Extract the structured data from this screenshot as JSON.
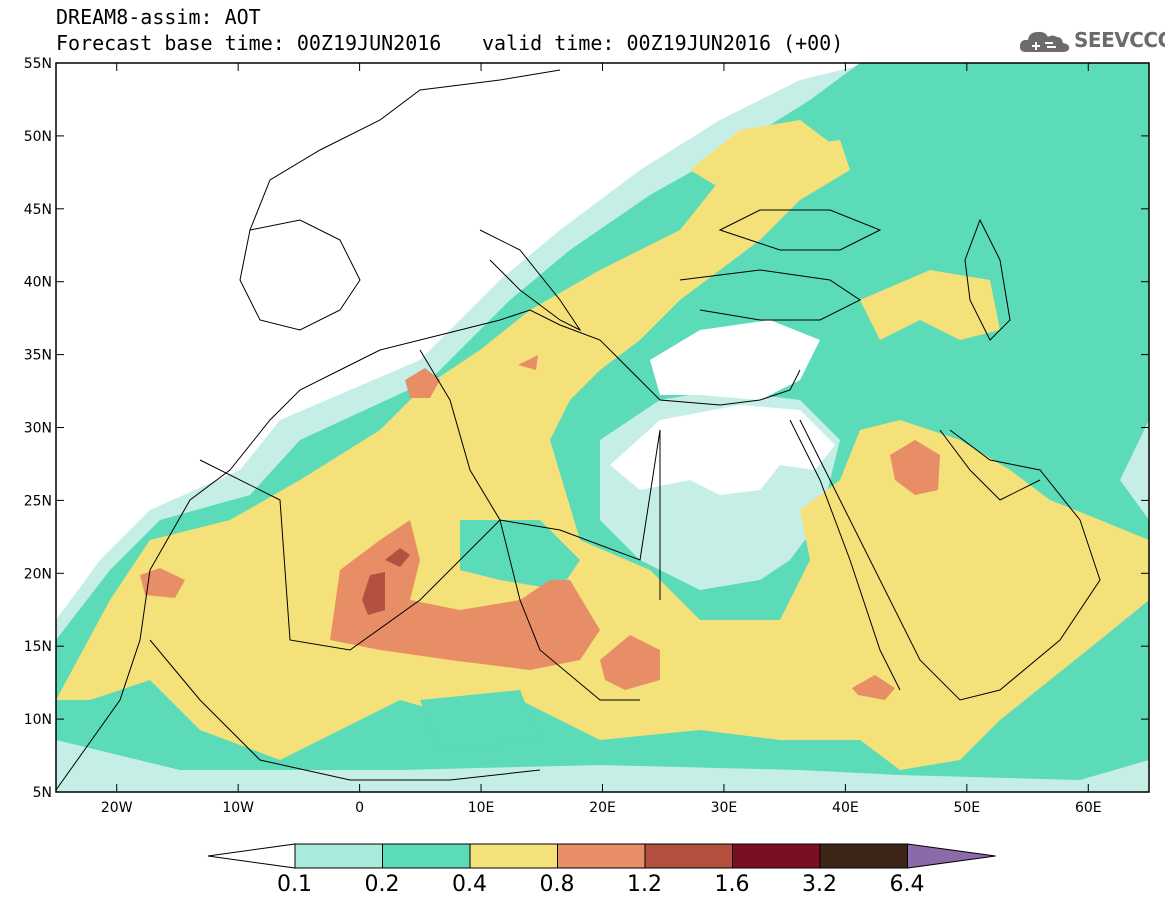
{
  "header": {
    "title": "DREAM8-assim: AOT",
    "base_time": "Forecast base time: 00Z19JUN2016",
    "valid_time": "valid time: 00Z19JUN2016 (+00)",
    "logo_text": "SEEVCCC"
  },
  "map": {
    "lon_range": [
      -25,
      65
    ],
    "lat_range": [
      5,
      55
    ],
    "lat_labels": [
      "5N",
      "10N",
      "15N",
      "20N",
      "25N",
      "30N",
      "35N",
      "40N",
      "45N",
      "50N",
      "55N"
    ],
    "lon_labels": [
      "20W",
      "10W",
      "0",
      "10E",
      "20E",
      "30E",
      "40E",
      "50E",
      "60E"
    ]
  },
  "colorbar": {
    "levels": [
      "0.1",
      "0.2",
      "0.4",
      "0.8",
      "1.2",
      "1.6",
      "3.2",
      "6.4"
    ],
    "colors": {
      "low": "#c5efe6",
      "c1": "#a8eadb",
      "c2": "#5bdbb8",
      "c3": "#f5e17a",
      "c4": "#e88e66",
      "c5": "#b4503f",
      "c6": "#7a0f24",
      "c7": "#3c2417",
      "high": "#8a6aa8"
    }
  }
}
